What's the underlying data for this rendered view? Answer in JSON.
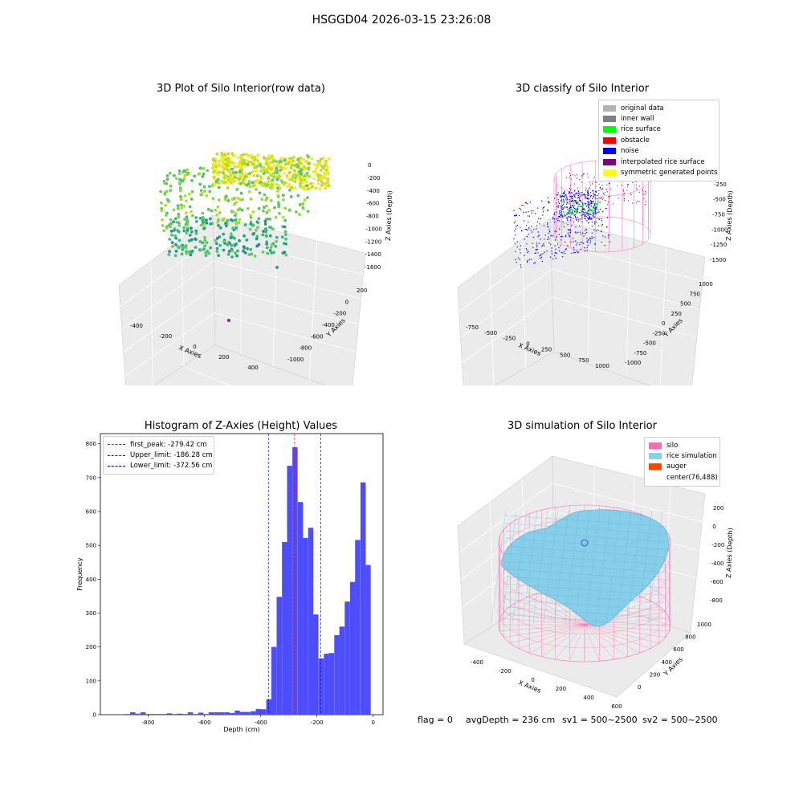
{
  "suptitle": "HSGGD04 2026-03-15 23:26:08",
  "colors": {
    "original": "#b4b4b4",
    "inner_wall": "#808080",
    "rice_surface": "#00ff00",
    "obstacle": "#ff0000",
    "noise": "#0000ff",
    "interpolated": "#800080",
    "symmetric": "#ffff00",
    "silo": "#ff69b4",
    "rice_sim": "#87ceeb",
    "auger": "#ff4500",
    "hist_bar": "#4d4dff"
  },
  "raw_plot": {
    "title": "3D Plot of Silo Interior(row data)",
    "x_label": "X Axies",
    "y_label": "Y Axies",
    "z_label": "Z Axies (Depth)",
    "x_ticks": [
      "-400",
      "-200",
      "0",
      "200",
      "400"
    ],
    "y_ticks": [
      "200",
      "0",
      "-200",
      "-400",
      "-600",
      "-800",
      "-1000"
    ],
    "z_ticks": [
      "0",
      "-200",
      "-400",
      "-600",
      "-800",
      "-1000",
      "-1200",
      "-1400",
      "-1600"
    ]
  },
  "classify_plot": {
    "title": "3D classify of Silo Interior",
    "x_label": "X Axies",
    "y_label": "Y Axies",
    "z_label": "Z Axies (Depth)",
    "x_ticks": [
      "-750",
      "-500",
      "-250",
      "0",
      "250",
      "500",
      "750",
      "1000"
    ],
    "y_ticks": [
      "1000",
      "750",
      "500",
      "250",
      "0",
      "-250",
      "-500",
      "-750",
      "-1000"
    ],
    "z_ticks": [
      "0",
      "-250",
      "-500",
      "-750",
      "-1000",
      "-1250",
      "-1500"
    ],
    "legend": [
      "original data",
      "inner wall",
      "rice surface",
      "obstacle",
      "noise",
      "interpolated rice surface",
      "symmetric generated points"
    ]
  },
  "histogram": {
    "title": "Histogram of Z-Axies (Height) Values",
    "x_label": "Depth (cm)",
    "y_label": "Frequency",
    "legend": [
      "first_peak: -279.42 cm",
      "Upper_limit: -186.28 cm",
      "Lower_limit: -372.56 cm"
    ]
  },
  "sim_plot": {
    "title": "3D simulation of Silo Interior",
    "x_label": "X Axies",
    "y_label": "Y Axies",
    "z_label": "Z Axies (Depth)",
    "x_ticks": [
      "-400",
      "-200",
      "0",
      "200",
      "400",
      "600"
    ],
    "y_ticks": [
      "1000",
      "800",
      "600",
      "400",
      "200",
      "0"
    ],
    "z_ticks": [
      "200",
      "0",
      "-200",
      "-400",
      "-600",
      "-800"
    ],
    "legend": [
      "silo",
      "rice simulation",
      "auger",
      "center(76,488)"
    ]
  },
  "status": {
    "flag": "flag = 0",
    "avg_depth": "avgDepth = 236 cm",
    "sv1": "sv1 = 500~2500",
    "sv2": "sv2 = 500~2500"
  },
  "chart_data": [
    {
      "type": "bar",
      "title": "Histogram of Z-Axies (Height) Values",
      "xlabel": "Depth (cm)",
      "ylabel": "Frequency",
      "xlim": [
        -970,
        35
      ],
      "ylim": [
        0,
        830
      ],
      "x_ticks": [
        -800,
        -600,
        -400,
        -200,
        0
      ],
      "y_ticks": [
        0,
        100,
        200,
        300,
        400,
        500,
        600,
        700,
        800
      ],
      "bin_width": 18.6,
      "bins": [
        {
          "x": -874,
          "count": 2
        },
        {
          "x": -855,
          "count": 7
        },
        {
          "x": -837,
          "count": 3
        },
        {
          "x": -818,
          "count": 7
        },
        {
          "x": -799,
          "count": 2
        },
        {
          "x": -781,
          "count": 2
        },
        {
          "x": -762,
          "count": 2
        },
        {
          "x": -744,
          "count": 2
        },
        {
          "x": -725,
          "count": 4
        },
        {
          "x": -706,
          "count": 2
        },
        {
          "x": -688,
          "count": 3
        },
        {
          "x": -669,
          "count": 2
        },
        {
          "x": -650,
          "count": 7
        },
        {
          "x": -632,
          "count": 2
        },
        {
          "x": -613,
          "count": 6
        },
        {
          "x": -595,
          "count": 2
        },
        {
          "x": -576,
          "count": 7
        },
        {
          "x": -557,
          "count": 7
        },
        {
          "x": -539,
          "count": 7
        },
        {
          "x": -520,
          "count": 7
        },
        {
          "x": -502,
          "count": 5
        },
        {
          "x": -483,
          "count": 12
        },
        {
          "x": -464,
          "count": 8
        },
        {
          "x": -446,
          "count": 8
        },
        {
          "x": -427,
          "count": 10
        },
        {
          "x": -408,
          "count": 17
        },
        {
          "x": -390,
          "count": 16
        },
        {
          "x": -371,
          "count": 45
        },
        {
          "x": -353,
          "count": 200
        },
        {
          "x": -334,
          "count": 348
        },
        {
          "x": -315,
          "count": 510
        },
        {
          "x": -297,
          "count": 735
        },
        {
          "x": -278,
          "count": 790
        },
        {
          "x": -259,
          "count": 628
        },
        {
          "x": -241,
          "count": 522
        },
        {
          "x": -222,
          "count": 552
        },
        {
          "x": -204,
          "count": 296
        },
        {
          "x": -185,
          "count": 166
        },
        {
          "x": -166,
          "count": 180
        },
        {
          "x": -148,
          "count": 182
        },
        {
          "x": -129,
          "count": 235
        },
        {
          "x": -111,
          "count": 260
        },
        {
          "x": -92,
          "count": 334
        },
        {
          "x": -73,
          "count": 392
        },
        {
          "x": -55,
          "count": 516
        },
        {
          "x": -36,
          "count": 686
        },
        {
          "x": -18,
          "count": 442
        }
      ],
      "vlines": [
        {
          "name": "first_peak",
          "x": -279.42,
          "color": "#ff0000"
        },
        {
          "name": "Upper_limit",
          "x": -186.28,
          "color": "#0000ff"
        },
        {
          "name": "Lower_limit",
          "x": -372.56,
          "color": "#0000ff"
        }
      ]
    }
  ]
}
